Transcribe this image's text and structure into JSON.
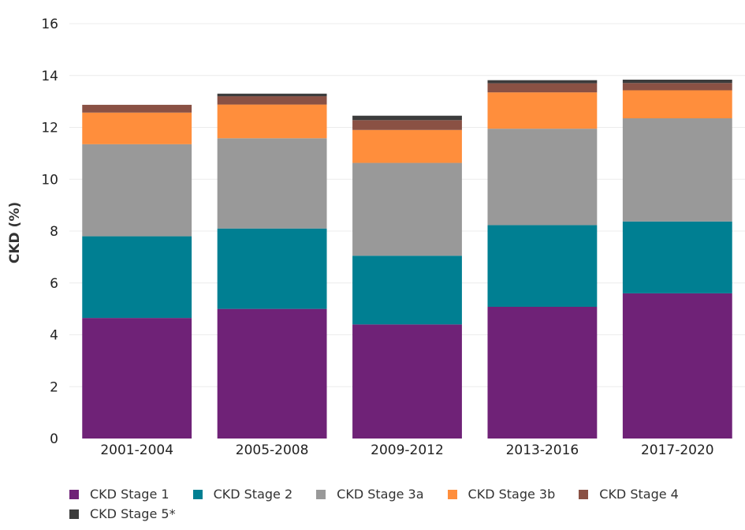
{
  "chart_data": {
    "type": "bar",
    "stacked": true,
    "categories": [
      "2001-2004",
      "2005-2008",
      "2009-2012",
      "2013-2016",
      "2017-2020"
    ],
    "series": [
      {
        "name": "CKD Stage 1",
        "color": "#6f2277",
        "values": [
          4.65,
          5.0,
          4.4,
          5.08,
          5.6
        ]
      },
      {
        "name": "CKD Stage 2",
        "color": "#007f92",
        "values": [
          3.15,
          3.1,
          2.65,
          3.15,
          2.77
        ]
      },
      {
        "name": "CKD Stage 3a",
        "color": "#999999",
        "values": [
          3.55,
          3.48,
          3.58,
          3.72,
          3.98
        ]
      },
      {
        "name": "CKD Stage 3b",
        "color": "#ff8e3c",
        "values": [
          1.22,
          1.3,
          1.27,
          1.4,
          1.08
        ]
      },
      {
        "name": "CKD Stage 4",
        "color": "#8a5144",
        "values": [
          0.3,
          0.32,
          0.38,
          0.35,
          0.28
        ]
      },
      {
        "name": "CKD Stage 5*",
        "color": "#3c3c3c",
        "values": [
          0.0,
          0.1,
          0.17,
          0.12,
          0.13
        ]
      }
    ],
    "title": "",
    "xlabel": "",
    "ylabel": "CKD (%)",
    "ylim": [
      0,
      16
    ],
    "yticks": [
      "0",
      "2",
      "4",
      "6",
      "8",
      "10",
      "12",
      "14",
      "16"
    ],
    "grid": true,
    "legend_position": "bottom"
  }
}
